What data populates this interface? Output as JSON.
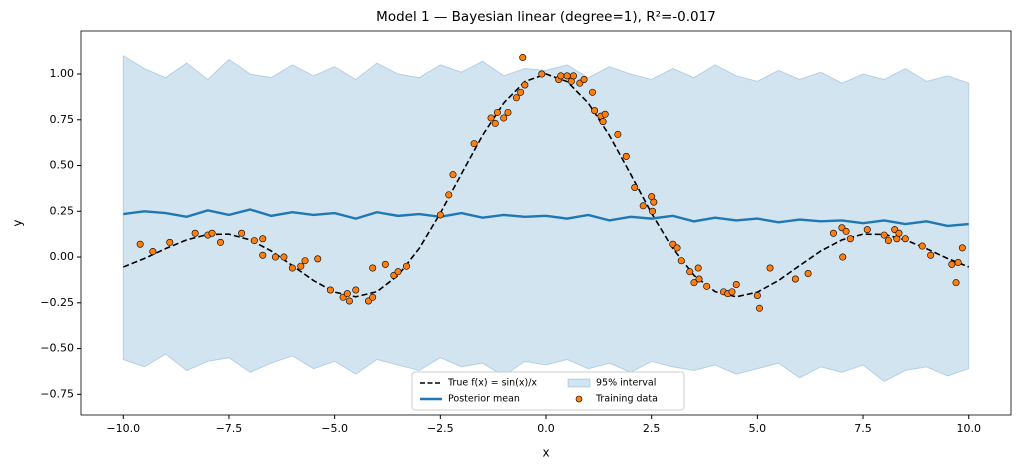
{
  "chart_data": {
    "type": "line",
    "title": "Model 1 — Bayesian linear (degree=1), R²=-0.017",
    "xlabel": "x",
    "ylabel": "y",
    "xlim": [
      -11,
      11
    ],
    "ylim": [
      -0.863,
      1.235
    ],
    "xticks": [
      {
        "value": -10,
        "label": "−10.0"
      },
      {
        "value": -7.5,
        "label": "−7.5"
      },
      {
        "value": -5,
        "label": "−5.0"
      },
      {
        "value": -2.5,
        "label": "−2.5"
      },
      {
        "value": 0,
        "label": "0.0"
      },
      2.5,
      {
        "value": 5,
        "label": "5.0"
      },
      7.5,
      {
        "value": 10,
        "label": "10.0"
      }
    ],
    "yticks": [
      {
        "value": -0.75,
        "label": "−0.75"
      },
      {
        "value": -0.5,
        "label": "−0.50"
      },
      {
        "value": -0.25,
        "label": "−0.25"
      },
      {
        "value": 0,
        "label": "0.00"
      },
      0.25,
      {
        "value": 0.5,
        "label": "0.50"
      },
      0.75,
      {
        "value": 1,
        "label": "1.00"
      }
    ],
    "legend": "lower center",
    "series": [
      {
        "name": "True f(x) = sin(x)/x",
        "kind": "line",
        "dashed": true,
        "color": "#000000",
        "x": [
          -10,
          -9.5,
          -9,
          -8.5,
          -8,
          -7.5,
          -7,
          -6.5,
          -6,
          -5.5,
          -5,
          -4.5,
          -4,
          -3.5,
          -3,
          -2.5,
          -2,
          -1.5,
          -1,
          -0.5,
          0,
          0.5,
          1,
          1.5,
          2,
          2.5,
          3,
          3.5,
          4,
          4.5,
          5,
          5.5,
          6,
          6.5,
          7,
          7.5,
          8,
          8.5,
          9,
          9.5,
          10
        ],
        "values": [
          -0.0544,
          -0.0079,
          0.0458,
          0.0939,
          0.1237,
          0.125,
          0.0939,
          0.0332,
          -0.0466,
          -0.1283,
          -0.1918,
          -0.2172,
          -0.1892,
          -0.1002,
          0.047,
          0.2394,
          0.4546,
          0.665,
          0.8415,
          0.9589,
          1,
          0.9589,
          0.8415,
          0.665,
          0.4546,
          0.2394,
          0.047,
          -0.1002,
          -0.1892,
          -0.2172,
          -0.1918,
          -0.1283,
          -0.0466,
          0.0332,
          0.0939,
          0.125,
          0.1237,
          0.0939,
          0.0458,
          -0.0079,
          -0.0544
        ]
      },
      {
        "name": "Posterior mean",
        "kind": "line",
        "dashed": false,
        "color": "#1f77b4",
        "x": [
          -10,
          -9.5,
          -9,
          -8.5,
          -8,
          -7.5,
          -7,
          -6.5,
          -6,
          -5.5,
          -5,
          -4.5,
          -4,
          -3.5,
          -3,
          -2.5,
          -2,
          -1.5,
          -1,
          -0.5,
          0,
          0.5,
          1,
          1.5,
          2,
          2.5,
          3,
          3.5,
          4,
          4.5,
          5,
          5.5,
          6,
          6.5,
          7,
          7.5,
          8,
          8.5,
          9,
          9.5,
          10
        ],
        "values": [
          0.235,
          0.25,
          0.24,
          0.22,
          0.255,
          0.23,
          0.26,
          0.225,
          0.245,
          0.23,
          0.24,
          0.21,
          0.245,
          0.225,
          0.235,
          0.22,
          0.24,
          0.215,
          0.23,
          0.22,
          0.225,
          0.21,
          0.23,
          0.2,
          0.22,
          0.21,
          0.225,
          0.195,
          0.215,
          0.2,
          0.21,
          0.19,
          0.205,
          0.195,
          0.2,
          0.185,
          0.2,
          0.18,
          0.195,
          0.17,
          0.18
        ]
      },
      {
        "name": "95% interval",
        "kind": "band",
        "color": "#1f77b4",
        "x": [
          -10,
          -9.5,
          -9,
          -8.5,
          -8,
          -7.5,
          -7,
          -6.5,
          -6,
          -5.5,
          -5,
          -4.5,
          -4,
          -3.5,
          -3,
          -2.5,
          -2,
          -1.5,
          -1,
          -0.5,
          0,
          0.5,
          1,
          1.5,
          2,
          2.5,
          3,
          3.5,
          4,
          4.5,
          5,
          5.5,
          6,
          6.5,
          7,
          7.5,
          8,
          8.5,
          9,
          9.5,
          10
        ],
        "upper": [
          1.1,
          1.03,
          0.98,
          1.06,
          0.97,
          1.08,
          1.0,
          0.98,
          1.05,
          0.99,
          1.04,
          0.97,
          1.06,
          1.0,
          0.98,
          1.05,
          1.01,
          1.07,
          0.99,
          1.03,
          1.02,
          1.05,
          0.98,
          1.04,
          1.0,
          0.97,
          1.03,
          0.98,
          1.05,
          0.99,
          0.96,
          1.02,
          0.97,
          1.01,
          0.95,
          1.0,
          0.97,
          1.03,
          0.96,
          0.99,
          0.95
        ],
        "lower": [
          -0.56,
          -0.6,
          -0.53,
          -0.62,
          -0.57,
          -0.55,
          -0.63,
          -0.58,
          -0.54,
          -0.61,
          -0.57,
          -0.64,
          -0.56,
          -0.59,
          -0.62,
          -0.55,
          -0.6,
          -0.58,
          -0.65,
          -0.57,
          -0.59,
          -0.56,
          -0.61,
          -0.58,
          -0.63,
          -0.57,
          -0.6,
          -0.62,
          -0.59,
          -0.64,
          -0.61,
          -0.58,
          -0.66,
          -0.6,
          -0.63,
          -0.59,
          -0.68,
          -0.62,
          -0.6,
          -0.65,
          -0.61
        ]
      },
      {
        "name": "Training data",
        "kind": "scatter",
        "color": "#ff7f0e",
        "x": [
          -9.6,
          -9.3,
          -8.9,
          -8.3,
          -8.0,
          -7.9,
          -7.7,
          -7.2,
          -6.9,
          -6.7,
          -6.7,
          -6.4,
          -6.2,
          -6.0,
          -5.8,
          -5.7,
          -5.4,
          -5.1,
          -4.8,
          -4.7,
          -4.65,
          -4.5,
          -4.2,
          -4.1,
          -4.1,
          -3.8,
          -3.6,
          -3.5,
          -3.3,
          -2.5,
          -2.3,
          -2.2,
          -1.7,
          -1.3,
          -1.2,
          -1.15,
          -1.0,
          -0.9,
          -0.7,
          -0.6,
          -0.55,
          -0.5,
          -0.1,
          0.3,
          0.35,
          0.5,
          0.6,
          0.65,
          0.8,
          0.9,
          1.1,
          1.15,
          1.3,
          1.35,
          1.4,
          1.7,
          1.9,
          2.1,
          2.3,
          2.5,
          2.55,
          2.52,
          3.0,
          3.1,
          3.2,
          3.4,
          3.5,
          3.6,
          3.62,
          3.8,
          4.2,
          4.3,
          4.4,
          4.5,
          5.0,
          5.05,
          5.3,
          5.9,
          6.2,
          6.8,
          7.0,
          7.1,
          7.2,
          7.02,
          7.6,
          8.0,
          8.1,
          8.25,
          8.3,
          8.35,
          8.5,
          8.9,
          9.1,
          9.6,
          9.7,
          9.75,
          9.85
        ],
        "values": [
          0.07,
          0.03,
          0.08,
          0.13,
          0.12,
          0.13,
          0.08,
          0.13,
          0.09,
          0.1,
          0.01,
          0.0,
          0.0,
          -0.06,
          -0.05,
          -0.02,
          -0.01,
          -0.18,
          -0.22,
          -0.2,
          -0.24,
          -0.18,
          -0.24,
          -0.22,
          -0.06,
          -0.04,
          -0.1,
          -0.08,
          -0.05,
          0.23,
          0.34,
          0.45,
          0.62,
          0.76,
          0.73,
          0.79,
          0.76,
          0.79,
          0.87,
          0.9,
          1.09,
          0.94,
          1.0,
          0.97,
          0.99,
          0.99,
          0.96,
          0.99,
          0.95,
          0.97,
          0.9,
          0.8,
          0.77,
          0.74,
          0.78,
          0.67,
          0.55,
          0.38,
          0.28,
          0.33,
          0.3,
          0.25,
          0.07,
          0.05,
          -0.02,
          -0.08,
          -0.14,
          -0.06,
          -0.12,
          -0.16,
          -0.19,
          -0.2,
          -0.19,
          -0.15,
          -0.21,
          -0.28,
          -0.06,
          -0.12,
          -0.09,
          0.13,
          0.16,
          0.14,
          0.1,
          0.0,
          0.15,
          0.12,
          0.09,
          0.15,
          0.1,
          0.13,
          0.1,
          0.06,
          0.01,
          -0.04,
          -0.14,
          -0.03,
          0.05
        ]
      }
    ]
  }
}
